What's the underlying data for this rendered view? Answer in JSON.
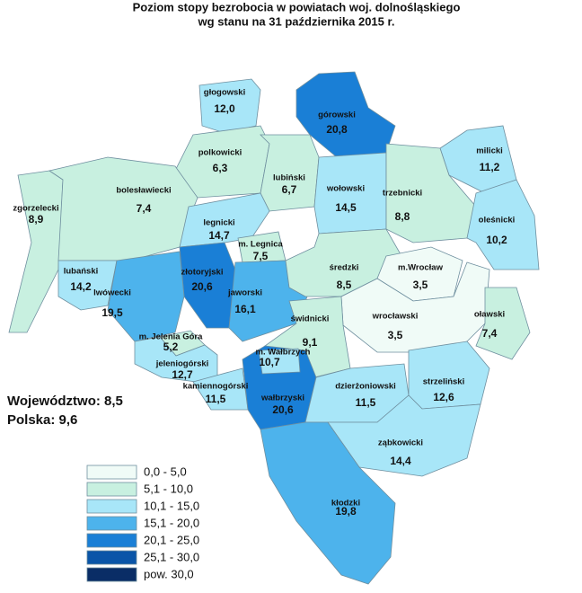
{
  "title": [
    "Poziom stopy bezrobocia w powiatach woj. dolnośląskiego",
    "wg stanu na 31 października 2015 r."
  ],
  "regions": [
    {
      "name": "głogowski",
      "value": "12,0",
      "color": "#a8e6f8"
    },
    {
      "name": "górowski",
      "value": "20,8",
      "color": "#1a7fd6"
    },
    {
      "name": "polkowicki",
      "value": "6,3",
      "color": "#c8f0e0"
    },
    {
      "name": "lubiński",
      "value": "6,7",
      "color": "#c8f0e0"
    },
    {
      "name": "wołowski",
      "value": "14,5",
      "color": "#a8e6f8"
    },
    {
      "name": "milicki",
      "value": "11,2",
      "color": "#a8e6f8"
    },
    {
      "name": "trzebnicki",
      "value": "8,8",
      "color": "#c8f0e0"
    },
    {
      "name": "oleśnicki",
      "value": "10,2",
      "color": "#a8e6f8"
    },
    {
      "name": "zgorzelecki",
      "value": "8,9",
      "color": "#c8f0e0"
    },
    {
      "name": "bolesławiecki",
      "value": "7,4",
      "color": "#c8f0e0"
    },
    {
      "name": "legnicki",
      "value": "14,7",
      "color": "#a8e6f8"
    },
    {
      "name": "m. Legnica",
      "value": "7,5",
      "color": "#c8f0e0"
    },
    {
      "name": "złotoryjski",
      "value": "20,6",
      "color": "#1a7fd6"
    },
    {
      "name": "lubański",
      "value": "14,2",
      "color": "#a8e6f8"
    },
    {
      "name": "lwówecki",
      "value": "19,5",
      "color": "#4db3ec"
    },
    {
      "name": "jaworski",
      "value": "16,1",
      "color": "#4db3ec"
    },
    {
      "name": "średzki",
      "value": "8,5",
      "color": "#c8f0e0"
    },
    {
      "name": "m.Wrocław",
      "value": "3,5",
      "color": "#f0fbf7"
    },
    {
      "name": "wrocławski",
      "value": "3,5",
      "color": "#f0fbf7"
    },
    {
      "name": "oławski",
      "value": "7,4",
      "color": "#c8f0e0"
    },
    {
      "name": "świdnicki",
      "value": "9,1",
      "color": "#c8f0e0"
    },
    {
      "name": "m. Jelenia Góra",
      "value": "5,2",
      "color": "#c8f0e0"
    },
    {
      "name": "jeleniogórski",
      "value": "12,7",
      "color": "#a8e6f8"
    },
    {
      "name": "kamiennogórski",
      "value": "11,5",
      "color": "#a8e6f8"
    },
    {
      "name": "wałbrzyski",
      "value": "20,6",
      "color": "#1a7fd6"
    },
    {
      "name": "m. Wałbrzych",
      "value": "10,7",
      "color": "#a8e6f8"
    },
    {
      "name": "dzierżoniowski",
      "value": "11,5",
      "color": "#a8e6f8"
    },
    {
      "name": "strzeliński",
      "value": "12,6",
      "color": "#a8e6f8"
    },
    {
      "name": "ząbkowicki",
      "value": "14,4",
      "color": "#a8e6f8"
    },
    {
      "name": "kłodzki",
      "value": "19,8",
      "color": "#4db3ec"
    }
  ],
  "summary": [
    "Województwo: 8,5",
    "Polska: 9,6"
  ],
  "legend": [
    {
      "label": "0,0  -  5,0",
      "color": "#f0fbf7"
    },
    {
      "label": "5,1 - 10,0",
      "color": "#c8f0e0"
    },
    {
      "label": "10,1 - 15,0",
      "color": "#a8e6f8"
    },
    {
      "label": "15,1 - 20,0",
      "color": "#4db3ec"
    },
    {
      "label": "20,1 - 25,0",
      "color": "#1a7fd6"
    },
    {
      "label": "25,1 - 30,0",
      "color": "#0a55a8"
    },
    {
      "label": "pow.  30,0",
      "color": "#0a2d66"
    }
  ]
}
